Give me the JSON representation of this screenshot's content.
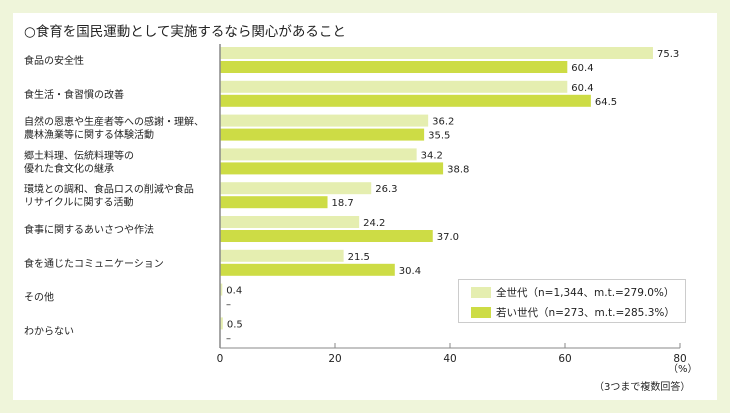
{
  "chart_data": {
    "type": "bar",
    "orientation": "horizontal",
    "title": "○食育を国民運動として実施するなら関心があること",
    "categories": [
      [
        "食品の安全性"
      ],
      [
        "食生活・食習慣の改善"
      ],
      [
        "自然の恩恵や生産者等への感謝・理解、",
        "農林漁業等に関する体験活動"
      ],
      [
        "郷土料理、伝統料理等の",
        "優れた食文化の継承"
      ],
      [
        "環境との調和、食品ロスの削減や食品",
        "リサイクルに関する活動"
      ],
      [
        "食事に関するあいさつや作法"
      ],
      [
        "食を通じたコミュニケーション"
      ],
      [
        "その他"
      ],
      [
        "わからない"
      ]
    ],
    "series": [
      {
        "name": "全世代（n=1,344、m.t.=279.0%）",
        "color": "#e5eeb0",
        "values": [
          75.3,
          60.4,
          36.2,
          34.2,
          26.3,
          24.2,
          21.5,
          0.4,
          0.5
        ]
      },
      {
        "name": "若い世代（n=273、m.t.=285.3%）",
        "color": "#cddc45",
        "values": [
          60.4,
          64.5,
          35.5,
          38.8,
          18.7,
          37.0,
          30.4,
          null,
          null
        ]
      }
    ],
    "missing_label": "–",
    "xlim": [
      0,
      80
    ],
    "xticks": [
      0,
      20,
      40,
      60,
      80
    ],
    "xunit": "（%）",
    "note": "（3つまで複数回答）",
    "legend_placement": "bottom-right",
    "grid": false
  }
}
